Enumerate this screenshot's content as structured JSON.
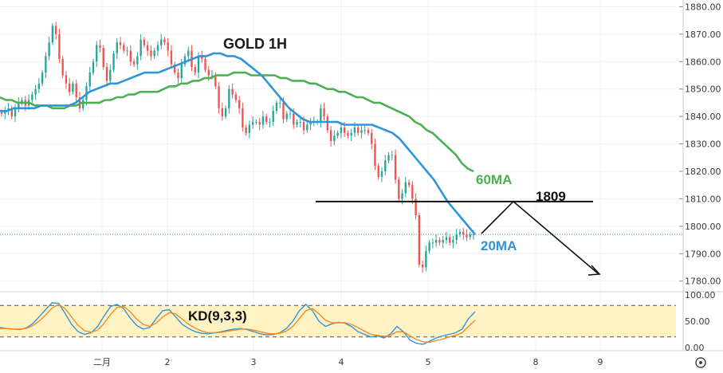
{
  "chart_data": [
    {
      "type": "candlestick",
      "title": "GOLD 1H",
      "ylim": [
        1777,
        1881
      ],
      "y_ticks": [
        "1880.00",
        "1870.00",
        "1860.00",
        "1850.00",
        "1840.00",
        "1830.00",
        "1820.00",
        "1810.00",
        "1800.00",
        "1790.00",
        "1780.00"
      ],
      "x_ticks": [
        "二月",
        "2",
        "3",
        "4",
        "5",
        "8",
        "9"
      ],
      "up_color": "#26a69a",
      "down_color": "#ef5350",
      "close_series": [
        1841,
        1842,
        1843,
        1840,
        1843,
        1845,
        1846,
        1844,
        1846,
        1848,
        1850,
        1852,
        1856,
        1862,
        1867,
        1873,
        1870,
        1861,
        1855,
        1852,
        1849,
        1852,
        1847,
        1843,
        1846,
        1851,
        1856,
        1860,
        1866,
        1865,
        1858,
        1853,
        1857,
        1863,
        1867,
        1866,
        1864,
        1864,
        1860,
        1859,
        1862,
        1868,
        1866,
        1864,
        1862,
        1864,
        1866,
        1868,
        1867,
        1864,
        1859,
        1856,
        1854,
        1859,
        1862,
        1864,
        1858,
        1856,
        1862,
        1861,
        1857,
        1855,
        1855,
        1851,
        1843,
        1840,
        1843,
        1850,
        1848,
        1846,
        1843,
        1836,
        1834,
        1837,
        1838,
        1838,
        1837,
        1840,
        1838,
        1838,
        1842,
        1845,
        1845,
        1839,
        1841,
        1841,
        1837,
        1838,
        1838,
        1835,
        1837,
        1838,
        1838,
        1838,
        1843,
        1840,
        1835,
        1831,
        1833,
        1834,
        1836,
        1834,
        1833,
        1834,
        1836,
        1834,
        1835,
        1835,
        1834,
        1830,
        1822,
        1818,
        1820,
        1824,
        1826,
        1826,
        1817,
        1810,
        1812,
        1816,
        1815,
        1810,
        1804,
        1786,
        1785,
        1791,
        1794,
        1794,
        1795,
        1794,
        1795,
        1796,
        1794,
        1795,
        1797,
        1798,
        1797,
        1796,
        1797,
        1797
      ],
      "series": [
        {
          "name": "60MA",
          "color": "#4caf50",
          "values": [
            1847,
            1846,
            1846,
            1845,
            1845,
            1845,
            1844,
            1844,
            1844,
            1843,
            1843,
            1843,
            1844,
            1844,
            1845,
            1845,
            1845,
            1845,
            1846,
            1846,
            1847,
            1847,
            1848,
            1848,
            1849,
            1849,
            1849,
            1849,
            1850,
            1851,
            1851,
            1852,
            1852,
            1853,
            1853,
            1854,
            1854,
            1855,
            1855,
            1855,
            1856,
            1856,
            1856,
            1855,
            1855,
            1855,
            1855,
            1855,
            1854,
            1854,
            1853,
            1853,
            1853,
            1852,
            1852,
            1851,
            1850,
            1850,
            1849,
            1849,
            1848,
            1847,
            1847,
            1846,
            1845,
            1845,
            1844,
            1843,
            1842,
            1841,
            1840,
            1838,
            1837,
            1835,
            1834,
            1832,
            1830,
            1828,
            1826,
            1823,
            1821,
            1820
          ]
        },
        {
          "name": "20MA",
          "color": "#2e95dc",
          "values": [
            1842,
            1842,
            1843,
            1843,
            1843,
            1843,
            1844,
            1844,
            1844,
            1844,
            1844,
            1845,
            1847,
            1849,
            1850,
            1851,
            1852,
            1852,
            1853,
            1854,
            1855,
            1856,
            1856,
            1856,
            1857,
            1858,
            1859,
            1860,
            1861,
            1862,
            1862,
            1863,
            1863,
            1862,
            1862,
            1861,
            1859,
            1857,
            1855,
            1852,
            1849,
            1846,
            1843,
            1841,
            1839,
            1838,
            1838,
            1838,
            1838,
            1838,
            1837,
            1837,
            1837,
            1837,
            1837,
            1836,
            1835,
            1834,
            1832,
            1829,
            1826,
            1823,
            1820,
            1817,
            1813,
            1809,
            1806,
            1803,
            1800,
            1797
          ]
        }
      ],
      "annotations": [
        {
          "text": "60MA"
        },
        {
          "text": "20MA"
        },
        {
          "text": "1809",
          "kind": "horizontal-level",
          "value": 1809
        },
        {
          "kind": "projection-arrow",
          "direction": "down"
        },
        {
          "kind": "dotted-price-line",
          "value": 1797
        }
      ]
    },
    {
      "type": "line",
      "title": "KD(9,3,3)",
      "ylim": [
        0,
        100
      ],
      "y_ticks": [
        "100.00",
        "50.00",
        "0.00"
      ],
      "band": [
        20,
        80
      ],
      "band_color": "#fff3c4",
      "series": [
        {
          "name": "K",
          "color": "#2e95dc",
          "values": [
            38,
            36,
            35,
            34,
            37,
            45,
            58,
            72,
            85,
            84,
            65,
            44,
            30,
            25,
            28,
            40,
            60,
            78,
            82,
            74,
            56,
            42,
            35,
            38,
            55,
            70,
            72,
            58,
            44,
            36,
            30,
            27,
            26,
            28,
            30,
            33,
            35,
            36,
            34,
            30,
            26,
            24,
            25,
            28,
            36,
            50,
            70,
            82,
            70,
            50,
            40,
            45,
            48,
            46,
            40,
            30,
            25,
            20,
            22,
            18,
            26,
            40,
            30,
            14,
            8,
            6,
            12,
            18,
            22,
            25,
            28,
            35,
            55,
            68
          ]
        },
        {
          "name": "D",
          "color": "#f28c28",
          "values": [
            36,
            36,
            35,
            35,
            36,
            41,
            50,
            62,
            75,
            82,
            74,
            58,
            42,
            32,
            29,
            33,
            46,
            63,
            76,
            78,
            68,
            54,
            44,
            40,
            46,
            58,
            66,
            64,
            54,
            44,
            37,
            31,
            28,
            28,
            29,
            31,
            33,
            35,
            35,
            33,
            30,
            27,
            26,
            27,
            31,
            40,
            55,
            70,
            74,
            64,
            52,
            47,
            47,
            47,
            44,
            38,
            31,
            25,
            23,
            21,
            23,
            30,
            30,
            22,
            15,
            11,
            10,
            13,
            16,
            20,
            23,
            28,
            40,
            52
          ]
        }
      ]
    }
  ],
  "ui": {
    "settings_icon": "gear-icon"
  }
}
